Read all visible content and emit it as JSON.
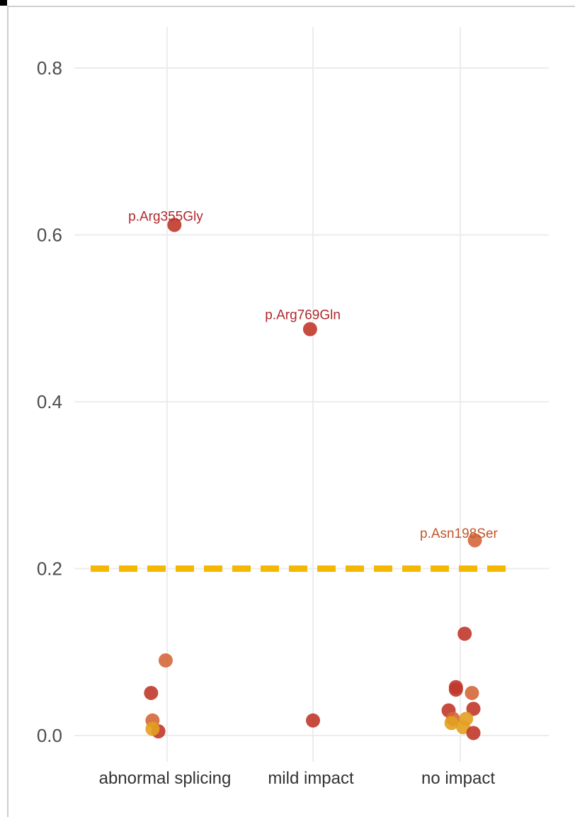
{
  "chart_data": {
    "type": "scatter",
    "title": "",
    "xlabel": "",
    "ylabel": "",
    "ylim": [
      -0.03,
      0.85
    ],
    "yticks": [
      0.0,
      0.2,
      0.4,
      0.6,
      0.8
    ],
    "ytick_labels": [
      "0.0",
      "0.2",
      "0.4",
      "0.6",
      "0.8"
    ],
    "categories": [
      "abnormal splicing",
      "mild impact",
      "no impact"
    ],
    "grid": true,
    "legend": "none",
    "threshold": {
      "y": 0.2,
      "color": "#F5B800",
      "style": "dashed"
    },
    "points": [
      {
        "category": "abnormal splicing",
        "jitter": 0.05,
        "y": 0.612,
        "color": "#C0392B"
      },
      {
        "category": "abnormal splicing",
        "jitter": -0.01,
        "y": 0.09,
        "color": "#D4683A"
      },
      {
        "category": "abnormal splicing",
        "jitter": -0.11,
        "y": 0.051,
        "color": "#C0392B"
      },
      {
        "category": "abnormal splicing",
        "jitter": -0.1,
        "y": 0.018,
        "color": "#D4683A"
      },
      {
        "category": "abnormal splicing",
        "jitter": -0.06,
        "y": 0.005,
        "color": "#C0392B"
      },
      {
        "category": "abnormal splicing",
        "jitter": -0.1,
        "y": 0.008,
        "color": "#E3A020"
      },
      {
        "category": "mild impact",
        "jitter": -0.02,
        "y": 0.487,
        "color": "#C0392B"
      },
      {
        "category": "mild impact",
        "jitter": 0.0,
        "y": 0.018,
        "color": "#C0392B"
      },
      {
        "category": "no impact",
        "jitter": 0.1,
        "y": 0.234,
        "color": "#D4683A"
      },
      {
        "category": "no impact",
        "jitter": 0.03,
        "y": 0.122,
        "color": "#C0392B"
      },
      {
        "category": "no impact",
        "jitter": -0.03,
        "y": 0.058,
        "color": "#C0392B"
      },
      {
        "category": "no impact",
        "jitter": -0.03,
        "y": 0.055,
        "color": "#C0392B"
      },
      {
        "category": "no impact",
        "jitter": 0.08,
        "y": 0.051,
        "color": "#D4683A"
      },
      {
        "category": "no impact",
        "jitter": -0.08,
        "y": 0.03,
        "color": "#C0392B"
      },
      {
        "category": "no impact",
        "jitter": 0.09,
        "y": 0.032,
        "color": "#C0392B"
      },
      {
        "category": "no impact",
        "jitter": -0.05,
        "y": 0.02,
        "color": "#D4683A"
      },
      {
        "category": "no impact",
        "jitter": -0.06,
        "y": 0.015,
        "color": "#E3A020"
      },
      {
        "category": "no impact",
        "jitter": 0.04,
        "y": 0.02,
        "color": "#E3A020"
      },
      {
        "category": "no impact",
        "jitter": 0.02,
        "y": 0.01,
        "color": "#E3A020"
      },
      {
        "category": "no impact",
        "jitter": 0.09,
        "y": 0.003,
        "color": "#C0392B"
      }
    ],
    "annotations": [
      {
        "text": "p.Arg355Gly",
        "category": "abnormal splicing",
        "jitter": -0.01,
        "y": 0.622,
        "color": "#B0282C"
      },
      {
        "text": "p.Arg769Gln",
        "category": "mild impact",
        "jitter": -0.07,
        "y": 0.504,
        "color": "#B0282C"
      },
      {
        "text": "p.Asn198Ser",
        "category": "no impact",
        "jitter": -0.01,
        "y": 0.242,
        "color": "#C0562A"
      }
    ]
  }
}
